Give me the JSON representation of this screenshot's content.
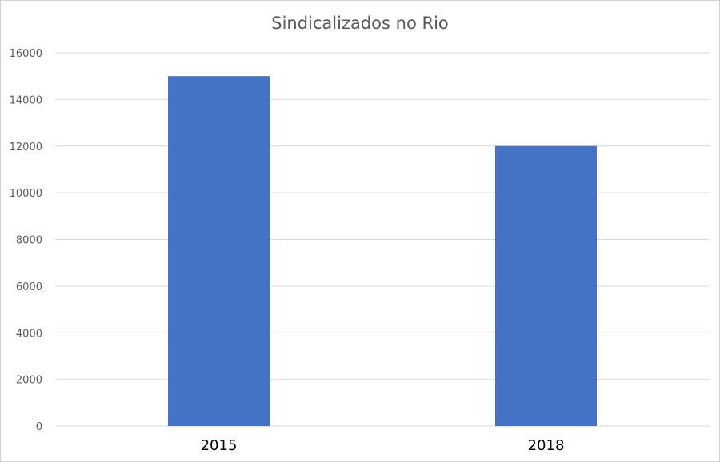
{
  "chart_data": {
    "type": "bar",
    "title": "Sindicalizados no Rio",
    "xlabel": "",
    "ylabel": "",
    "categories": [
      "2015",
      "2018"
    ],
    "values": [
      15000,
      12000
    ],
    "ylim": [
      0,
      16000
    ],
    "yticks": [
      "0",
      "2000",
      "4000",
      "6000",
      "8000",
      "10000",
      "12000",
      "14000",
      "16000"
    ],
    "grid": true,
    "legend": "none",
    "bar_color": "#4472C4"
  }
}
